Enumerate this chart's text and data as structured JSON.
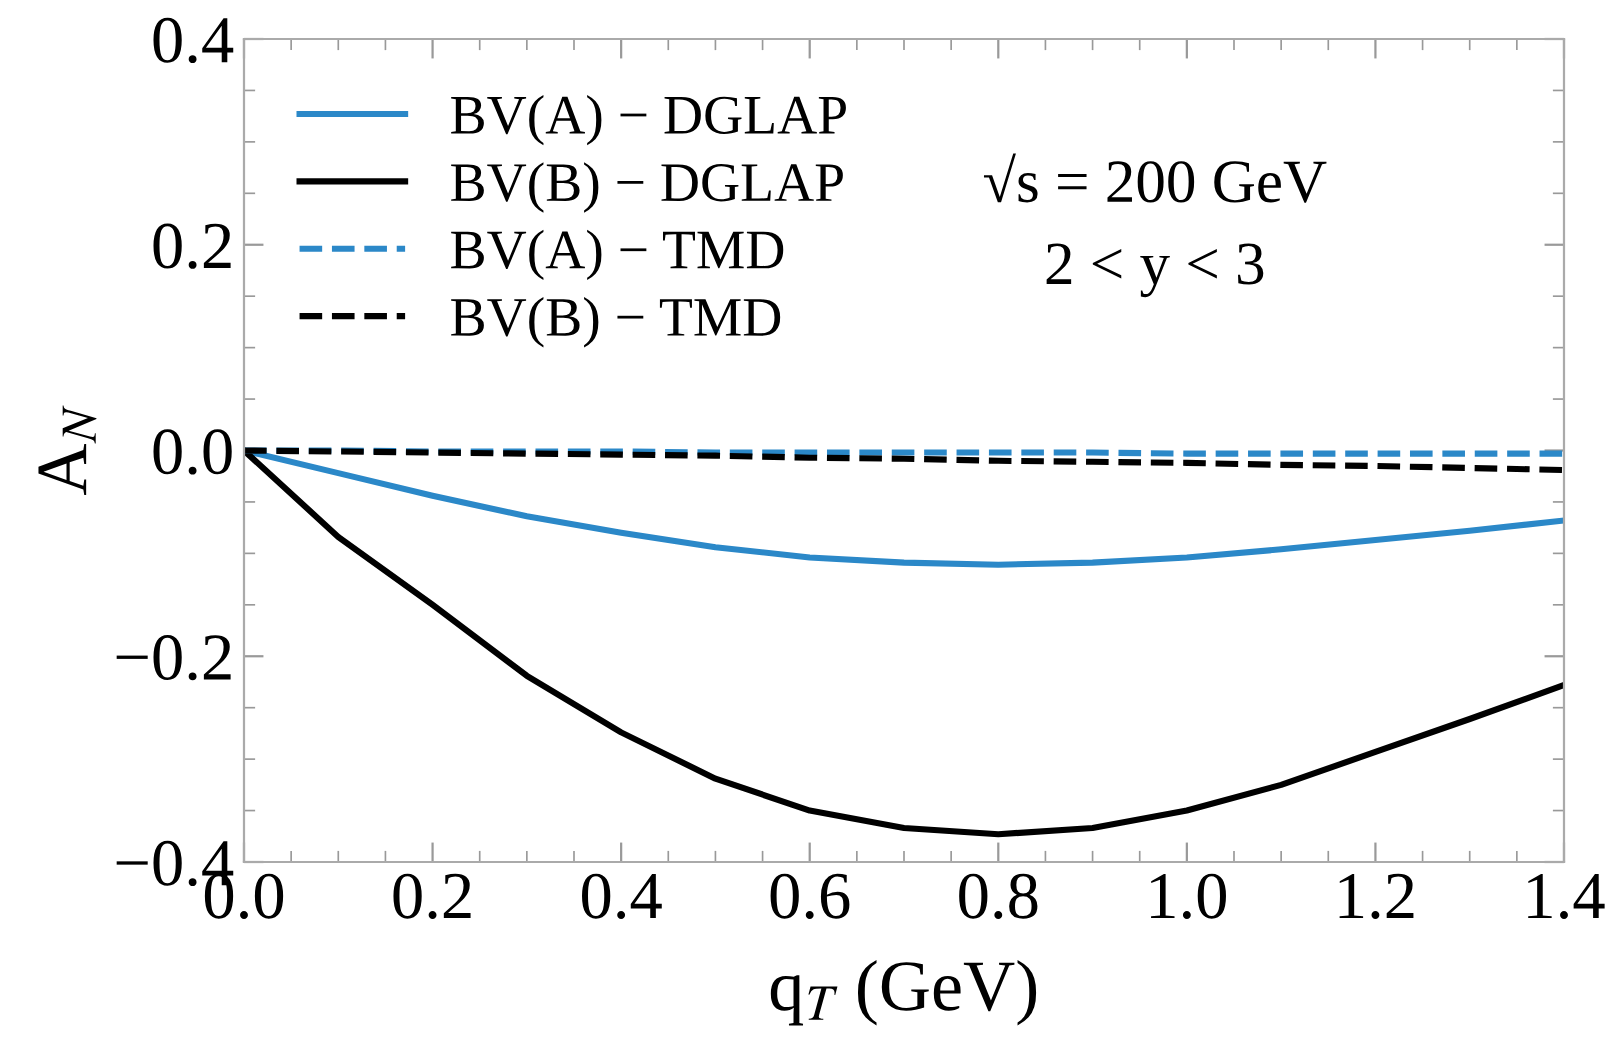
{
  "chart_data": {
    "type": "line",
    "x": [
      0,
      0.1,
      0.2,
      0.3,
      0.4,
      0.5,
      0.6,
      0.7,
      0.8,
      0.9,
      1.0,
      1.1,
      1.2,
      1.3,
      1.4
    ],
    "series": [
      {
        "name": "BV(A) − DGLAP",
        "color": "#2b88c8",
        "line_style": "solid",
        "values": [
          0,
          -0.022,
          -0.044,
          -0.064,
          -0.08,
          -0.094,
          -0.104,
          -0.109,
          -0.111,
          -0.109,
          -0.104,
          -0.096,
          -0.087,
          -0.078,
          -0.068
        ]
      },
      {
        "name": "BV(B) − DGLAP",
        "color": "#000000",
        "line_style": "solid",
        "values": [
          0,
          -0.084,
          -0.15,
          -0.219,
          -0.274,
          -0.319,
          -0.35,
          -0.367,
          -0.373,
          -0.367,
          -0.35,
          -0.325,
          -0.293,
          -0.261,
          -0.228
        ]
      },
      {
        "name": "BV(A) − TMD",
        "color": "#2b88c8",
        "line_style": "dashed",
        "values": [
          0,
          0,
          -0.001,
          -0.001,
          -0.001,
          -0.002,
          -0.002,
          -0.002,
          -0.002,
          -0.002,
          -0.003,
          -0.003,
          -0.003,
          -0.003,
          -0.003
        ]
      },
      {
        "name": "BV(B) − TMD",
        "color": "#000000",
        "line_style": "dashed",
        "values": [
          0,
          -0.001,
          -0.002,
          -0.003,
          -0.004,
          -0.005,
          -0.007,
          -0.008,
          -0.01,
          -0.011,
          -0.012,
          -0.014,
          -0.015,
          -0.017,
          -0.019
        ]
      }
    ],
    "xlabel": "q$_{T}$ (GeV)",
    "ylabel": "A$_{N}$",
    "annotations": [
      "√s = 200 GeV",
      "2 < y < 3"
    ],
    "xlim": [
      0,
      1.4
    ],
    "ylim": [
      -0.4,
      0.4
    ],
    "xticks": [
      {
        "value": 0,
        "label": "0.0"
      },
      0.2,
      0.4,
      0.6,
      0.8,
      {
        "value": 1.0,
        "label": "1.0"
      },
      1.2,
      1.4
    ],
    "yticks": [
      {
        "value": -0.4,
        "label": "−0.4"
      },
      {
        "value": -0.2,
        "label": "−0.2"
      },
      {
        "value": 0,
        "label": "0.0"
      },
      0.2,
      0.4
    ],
    "legend": "top left",
    "grid": false,
    "marker": "none"
  }
}
